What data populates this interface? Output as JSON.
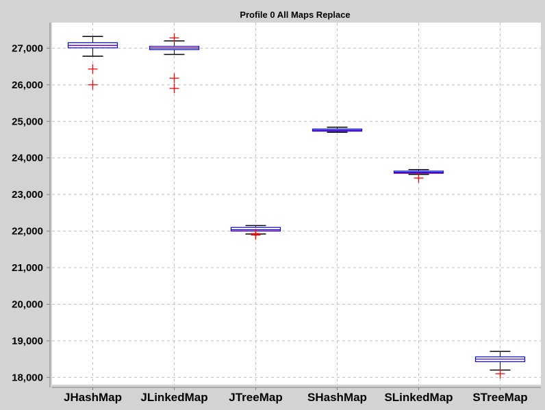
{
  "chart_data": {
    "type": "box",
    "title": "Profile 0 All Maps Replace",
    "xlabel": "",
    "ylabel": "",
    "ylim": [
      17800,
      27700
    ],
    "yticks": [
      18000,
      19000,
      20000,
      21000,
      22000,
      23000,
      24000,
      25000,
      26000,
      27000
    ],
    "grid": true,
    "legend": "none",
    "categories": [
      "JHashMap",
      "JLinkedMap",
      "JTreeMap",
      "SHashMap",
      "SLinkedMap",
      "STreeMap"
    ],
    "boxes": [
      {
        "whisker_low": 26780,
        "q1": 27010,
        "median": 27070,
        "mean": 27080,
        "q3": 27150,
        "whisker_high": 27320,
        "outliers": [
          26000,
          26430
        ]
      },
      {
        "whisker_low": 26830,
        "q1": 26960,
        "median": 27010,
        "mean": 27000,
        "q3": 27050,
        "whisker_high": 27200,
        "outliers": [
          25900,
          26180,
          27280
        ]
      },
      {
        "whisker_low": 21920,
        "q1": 22000,
        "median": 22030,
        "mean": 22040,
        "q3": 22100,
        "whisker_high": 22150,
        "outliers": [
          21890,
          21930
        ]
      },
      {
        "whisker_low": 24700,
        "q1": 24730,
        "median": 24750,
        "mean": 24760,
        "q3": 24790,
        "whisker_high": 24840,
        "outliers": []
      },
      {
        "whisker_low": 23550,
        "q1": 23580,
        "median": 23600,
        "mean": 23610,
        "q3": 23640,
        "whisker_high": 23680,
        "outliers": [
          23450
        ]
      },
      {
        "whisker_low": 18200,
        "q1": 18430,
        "median": 18500,
        "mean": 18500,
        "q3": 18560,
        "whisker_high": 18710,
        "outliers": [
          18100
        ]
      }
    ]
  },
  "colors": {
    "background": "#d3d3d3",
    "plot_background": "#ffffff",
    "grid": "#c0c0c0",
    "box": "#0000ff",
    "whisker": "#000000",
    "median": "#ff0000",
    "outlier": "#ff0000"
  }
}
